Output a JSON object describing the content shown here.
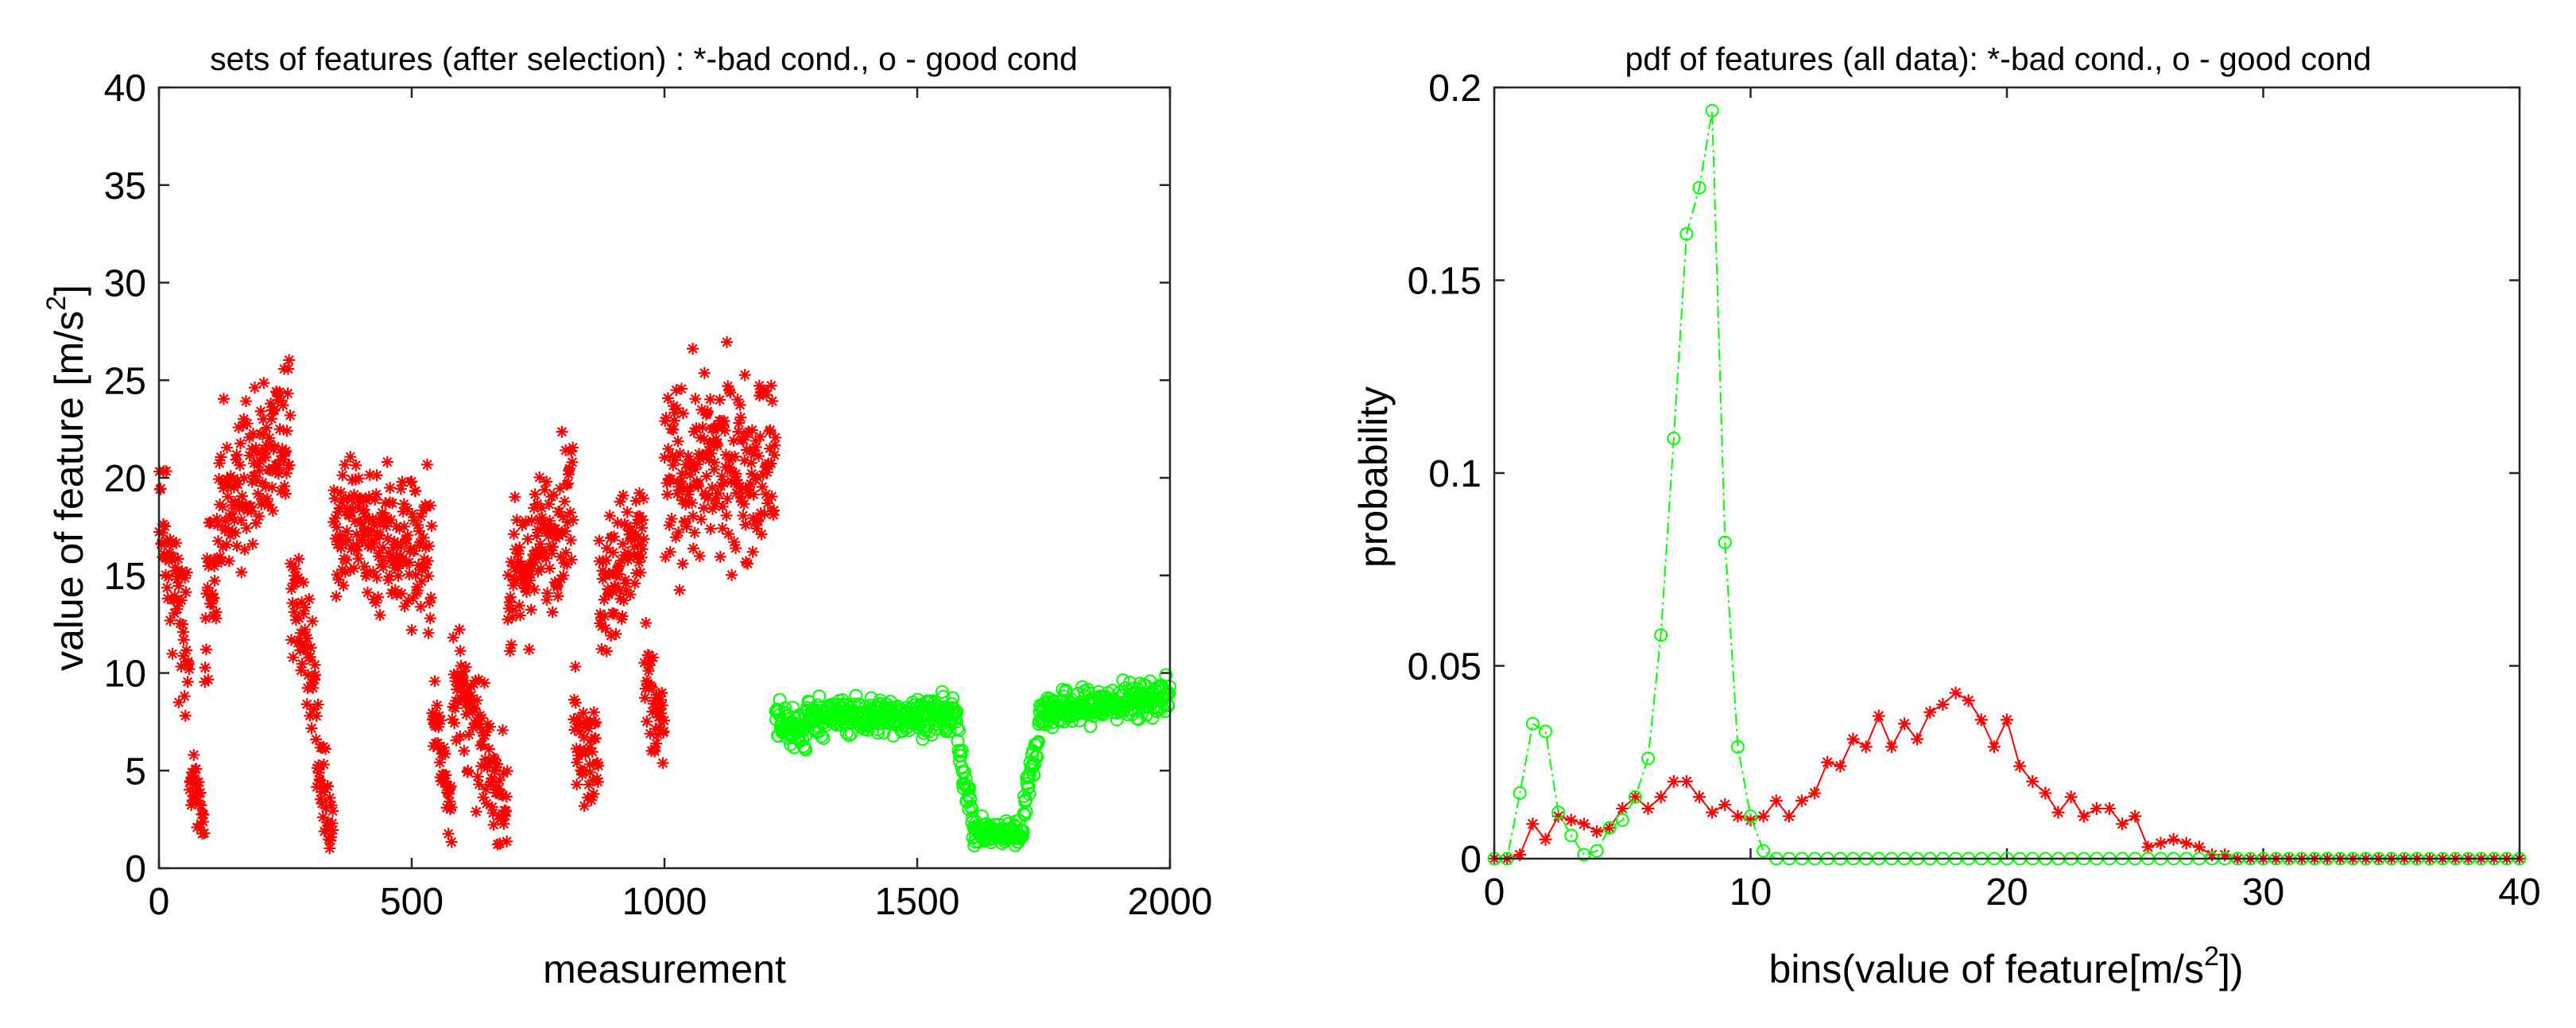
{
  "chart_data": [
    {
      "type": "scatter",
      "title": "sets of features (after selection) : *-bad cond., o - good cond",
      "xlabel": "measurement",
      "ylabel_main": "value of feature [m/s",
      "ylabel_sup": "2",
      "ylabel_end": "]",
      "xlim": [
        0,
        2000
      ],
      "ylim": [
        0,
        40
      ],
      "xticks": [
        0,
        500,
        1000,
        1500,
        2000
      ],
      "xtick_labels": [
        "0",
        "500",
        "1000",
        "1500",
        "2000"
      ],
      "yticks": [
        0,
        5,
        10,
        15,
        20,
        25,
        30,
        35,
        40
      ],
      "ytick_labels": [
        "0",
        "5",
        "10",
        "15",
        "20",
        "25",
        "30",
        "35",
        "40"
      ],
      "grid": false,
      "series": [
        {
          "name": "bad cond.",
          "marker": "*",
          "color": "#ff0000",
          "x_range": [
            0,
            1220
          ],
          "segments": [
            {
              "x": [
                0,
                60
              ],
              "level": [
                19,
                10
              ],
              "spread": 3.5
            },
            {
              "x": [
                60,
                90
              ],
              "level": [
                5,
                3
              ],
              "spread": 2.0
            },
            {
              "x": [
                90,
                130
              ],
              "level": [
                12,
                20
              ],
              "spread": 4.0
            },
            {
              "x": [
                130,
                260
              ],
              "level": [
                18,
                23
              ],
              "spread": 3.5
            },
            {
              "x": [
                260,
                310
              ],
              "level": [
                14,
                10
              ],
              "spread": 3.0
            },
            {
              "x": [
                310,
                345
              ],
              "level": [
                6,
                2
              ],
              "spread": 2.5
            },
            {
              "x": [
                345,
                540
              ],
              "level": [
                18,
                16
              ],
              "spread": 4.0
            },
            {
              "x": [
                540,
                580
              ],
              "level": [
                8,
                3
              ],
              "spread": 2.5
            },
            {
              "x": [
                580,
                640
              ],
              "level": [
                10,
                6
              ],
              "spread": 3.0
            },
            {
              "x": [
                640,
                690
              ],
              "level": [
                6,
                3
              ],
              "spread": 2.5
            },
            {
              "x": [
                690,
                820
              ],
              "level": [
                14,
                19
              ],
              "spread": 3.5
            },
            {
              "x": [
                820,
                870
              ],
              "level": [
                8,
                5
              ],
              "spread": 3.0
            },
            {
              "x": [
                870,
                960
              ],
              "level": [
                14,
                17
              ],
              "spread": 3.5
            },
            {
              "x": [
                960,
                1000
              ],
              "level": [
                9,
                7
              ],
              "spread": 3.0
            },
            {
              "x": [
                1000,
                1220
              ],
              "level": [
                20,
                21
              ],
              "spread": 4.5
            }
          ]
        },
        {
          "name": "good cond.",
          "marker": "o",
          "color": "#00ff00",
          "x_range": [
            1220,
            2000
          ],
          "segments": [
            {
              "x": [
                1220,
                1280
              ],
              "level": [
                7.5,
                7.0
              ],
              "spread": 1.2
            },
            {
              "x": [
                1280,
                1580
              ],
              "level": [
                7.8,
                7.8
              ],
              "spread": 0.9
            },
            {
              "x": [
                1580,
                1610
              ],
              "level": [
                6.0,
                3.0
              ],
              "spread": 1.0
            },
            {
              "x": [
                1610,
                1710
              ],
              "level": [
                1.8,
                1.8
              ],
              "spread": 0.6
            },
            {
              "x": [
                1710,
                1740
              ],
              "level": [
                3.5,
                6.5
              ],
              "spread": 1.0
            },
            {
              "x": [
                1740,
                2000
              ],
              "level": [
                8.0,
                8.8
              ],
              "spread": 0.9
            }
          ]
        }
      ]
    },
    {
      "type": "line",
      "title": "pdf of features (all data): *-bad cond., o - good cond",
      "xlabel_main": "bins(value of feature[m/s",
      "xlabel_sup": "2",
      "xlabel_end": "])",
      "ylabel": "probability",
      "xlim": [
        0,
        40
      ],
      "ylim": [
        0,
        0.2
      ],
      "xticks": [
        0,
        10,
        20,
        30,
        40
      ],
      "xtick_labels": [
        "0",
        "10",
        "20",
        "30",
        "40"
      ],
      "yticks": [
        0,
        0.05,
        0.1,
        0.15,
        0.2
      ],
      "ytick_labels": [
        "0",
        "0.05",
        "0.1",
        "0.15",
        "0.2"
      ],
      "grid": false,
      "x": [
        0,
        0.5,
        1,
        1.5,
        2,
        2.5,
        3,
        3.5,
        4,
        4.5,
        5,
        5.5,
        6,
        6.5,
        7,
        7.5,
        8,
        8.5,
        9,
        9.5,
        10,
        10.5,
        11,
        11.5,
        12,
        12.5,
        13,
        13.5,
        14,
        14.5,
        15,
        15.5,
        16,
        16.5,
        17,
        17.5,
        18,
        18.5,
        19,
        19.5,
        20,
        20.5,
        21,
        21.5,
        22,
        22.5,
        23,
        23.5,
        24,
        24.5,
        25,
        25.5,
        26,
        26.5,
        27,
        27.5,
        28,
        28.5,
        29,
        29.5,
        30,
        30.5,
        31,
        31.5,
        32,
        32.5,
        33,
        33.5,
        34,
        34.5,
        35,
        35.5,
        36,
        36.5,
        37,
        37.5,
        38,
        38.5,
        39,
        39.5,
        40
      ],
      "series": [
        {
          "name": "bad cond.",
          "marker": "*",
          "color": "#ff0000",
          "linestyle": "solid",
          "values": [
            0,
            0,
            0.001,
            0.009,
            0.005,
            0.011,
            0.01,
            0.009,
            0.007,
            0.008,
            0.013,
            0.016,
            0.013,
            0.016,
            0.02,
            0.02,
            0.016,
            0.012,
            0.014,
            0.011,
            0.01,
            0.011,
            0.015,
            0.011,
            0.015,
            0.017,
            0.025,
            0.024,
            0.031,
            0.029,
            0.037,
            0.029,
            0.035,
            0.031,
            0.038,
            0.04,
            0.043,
            0.041,
            0.036,
            0.029,
            0.036,
            0.024,
            0.02,
            0.017,
            0.012,
            0.016,
            0.011,
            0.013,
            0.013,
            0.009,
            0.011,
            0.003,
            0.004,
            0.005,
            0.004,
            0.003,
            0.001,
            0.001,
            0,
            0,
            0,
            0,
            0,
            0,
            0,
            0,
            0,
            0,
            0,
            0,
            0,
            0,
            0,
            0,
            0,
            0,
            0,
            0,
            0,
            0,
            0
          ]
        },
        {
          "name": "good cond.",
          "marker": "o",
          "color": "#00ff00",
          "linestyle": "dash-dot",
          "values": [
            0,
            0,
            0.017,
            0.035,
            0.033,
            0.012,
            0.006,
            0.001,
            0.002,
            0.008,
            0.01,
            0.016,
            0.026,
            0.058,
            0.109,
            0.162,
            0.174,
            0.194,
            0.082,
            0.029,
            0.011,
            0.002,
            0,
            0,
            0,
            0,
            0,
            0,
            0,
            0,
            0,
            0,
            0,
            0,
            0,
            0,
            0,
            0,
            0,
            0,
            0,
            0,
            0,
            0,
            0,
            0,
            0,
            0,
            0,
            0,
            0,
            0,
            0,
            0,
            0,
            0,
            0,
            0,
            0,
            0,
            0,
            0,
            0,
            0,
            0,
            0,
            0,
            0,
            0,
            0,
            0,
            0,
            0,
            0,
            0,
            0,
            0,
            0,
            0,
            0,
            0
          ]
        }
      ]
    }
  ]
}
